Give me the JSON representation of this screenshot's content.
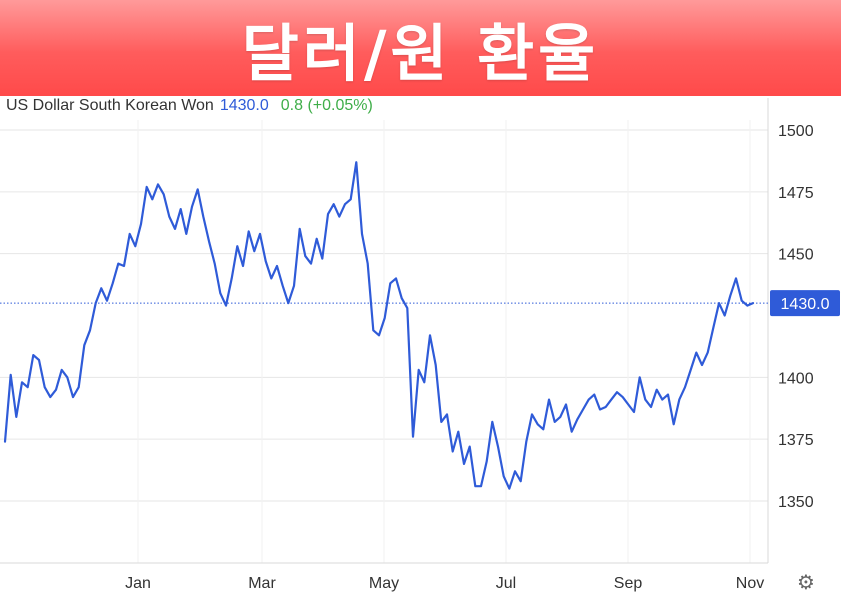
{
  "banner": {
    "title": "달러/원 환율"
  },
  "header": {
    "name": "US Dollar South Korean Won",
    "price": "1430.0",
    "change": "0.8 (+0.05%)"
  },
  "colors": {
    "line": "#2f5bd8",
    "change_positive": "#3fae49",
    "banner": "#ff5c5c",
    "grid": "#e6e6e6"
  },
  "icons": {
    "settings": "gear-icon"
  },
  "chart_data": {
    "type": "line",
    "title": "",
    "xlabel": "",
    "ylabel": "",
    "grid": true,
    "ylim": [
      1325,
      1505
    ],
    "y_ticks": [
      1500,
      1475,
      1450,
      1400,
      1375,
      1350
    ],
    "x_ticks": [
      "Jan",
      "Mar",
      "May",
      "Jul",
      "Sep",
      "Nov"
    ],
    "current_value": 1430.0,
    "current_label": "1430.0",
    "series": [
      {
        "values": [
          1374,
          1401,
          1384,
          1398,
          1396,
          1409,
          1407,
          1396,
          1392,
          1395,
          1403,
          1400,
          1392,
          1396,
          1413,
          1419,
          1430,
          1436,
          1431,
          1438,
          1446,
          1445,
          1458,
          1453,
          1462,
          1477,
          1472,
          1478,
          1474,
          1465,
          1460,
          1468,
          1458,
          1469,
          1476,
          1465,
          1455,
          1446,
          1434,
          1429,
          1440,
          1453,
          1445,
          1459,
          1451,
          1458,
          1447,
          1440,
          1445,
          1437,
          1430,
          1437,
          1460,
          1449,
          1446,
          1456,
          1448,
          1466,
          1470,
          1465,
          1470,
          1472,
          1487,
          1458,
          1446,
          1419,
          1417,
          1424,
          1438,
          1440,
          1432,
          1428,
          1376,
          1403,
          1398,
          1417,
          1405,
          1382,
          1385,
          1370,
          1378,
          1365,
          1372,
          1356,
          1356,
          1366,
          1382,
          1372,
          1360,
          1355,
          1362,
          1358,
          1374,
          1385,
          1381,
          1379,
          1391,
          1382,
          1384,
          1389,
          1378,
          1383,
          1387,
          1391,
          1393,
          1387,
          1388,
          1391,
          1394,
          1392,
          1389,
          1386,
          1400,
          1391,
          1388,
          1395,
          1391,
          1393,
          1381,
          1391,
          1396,
          1403,
          1410,
          1405,
          1410,
          1420,
          1430,
          1425,
          1433,
          1440,
          1431,
          1429,
          1430
        ]
      }
    ]
  }
}
